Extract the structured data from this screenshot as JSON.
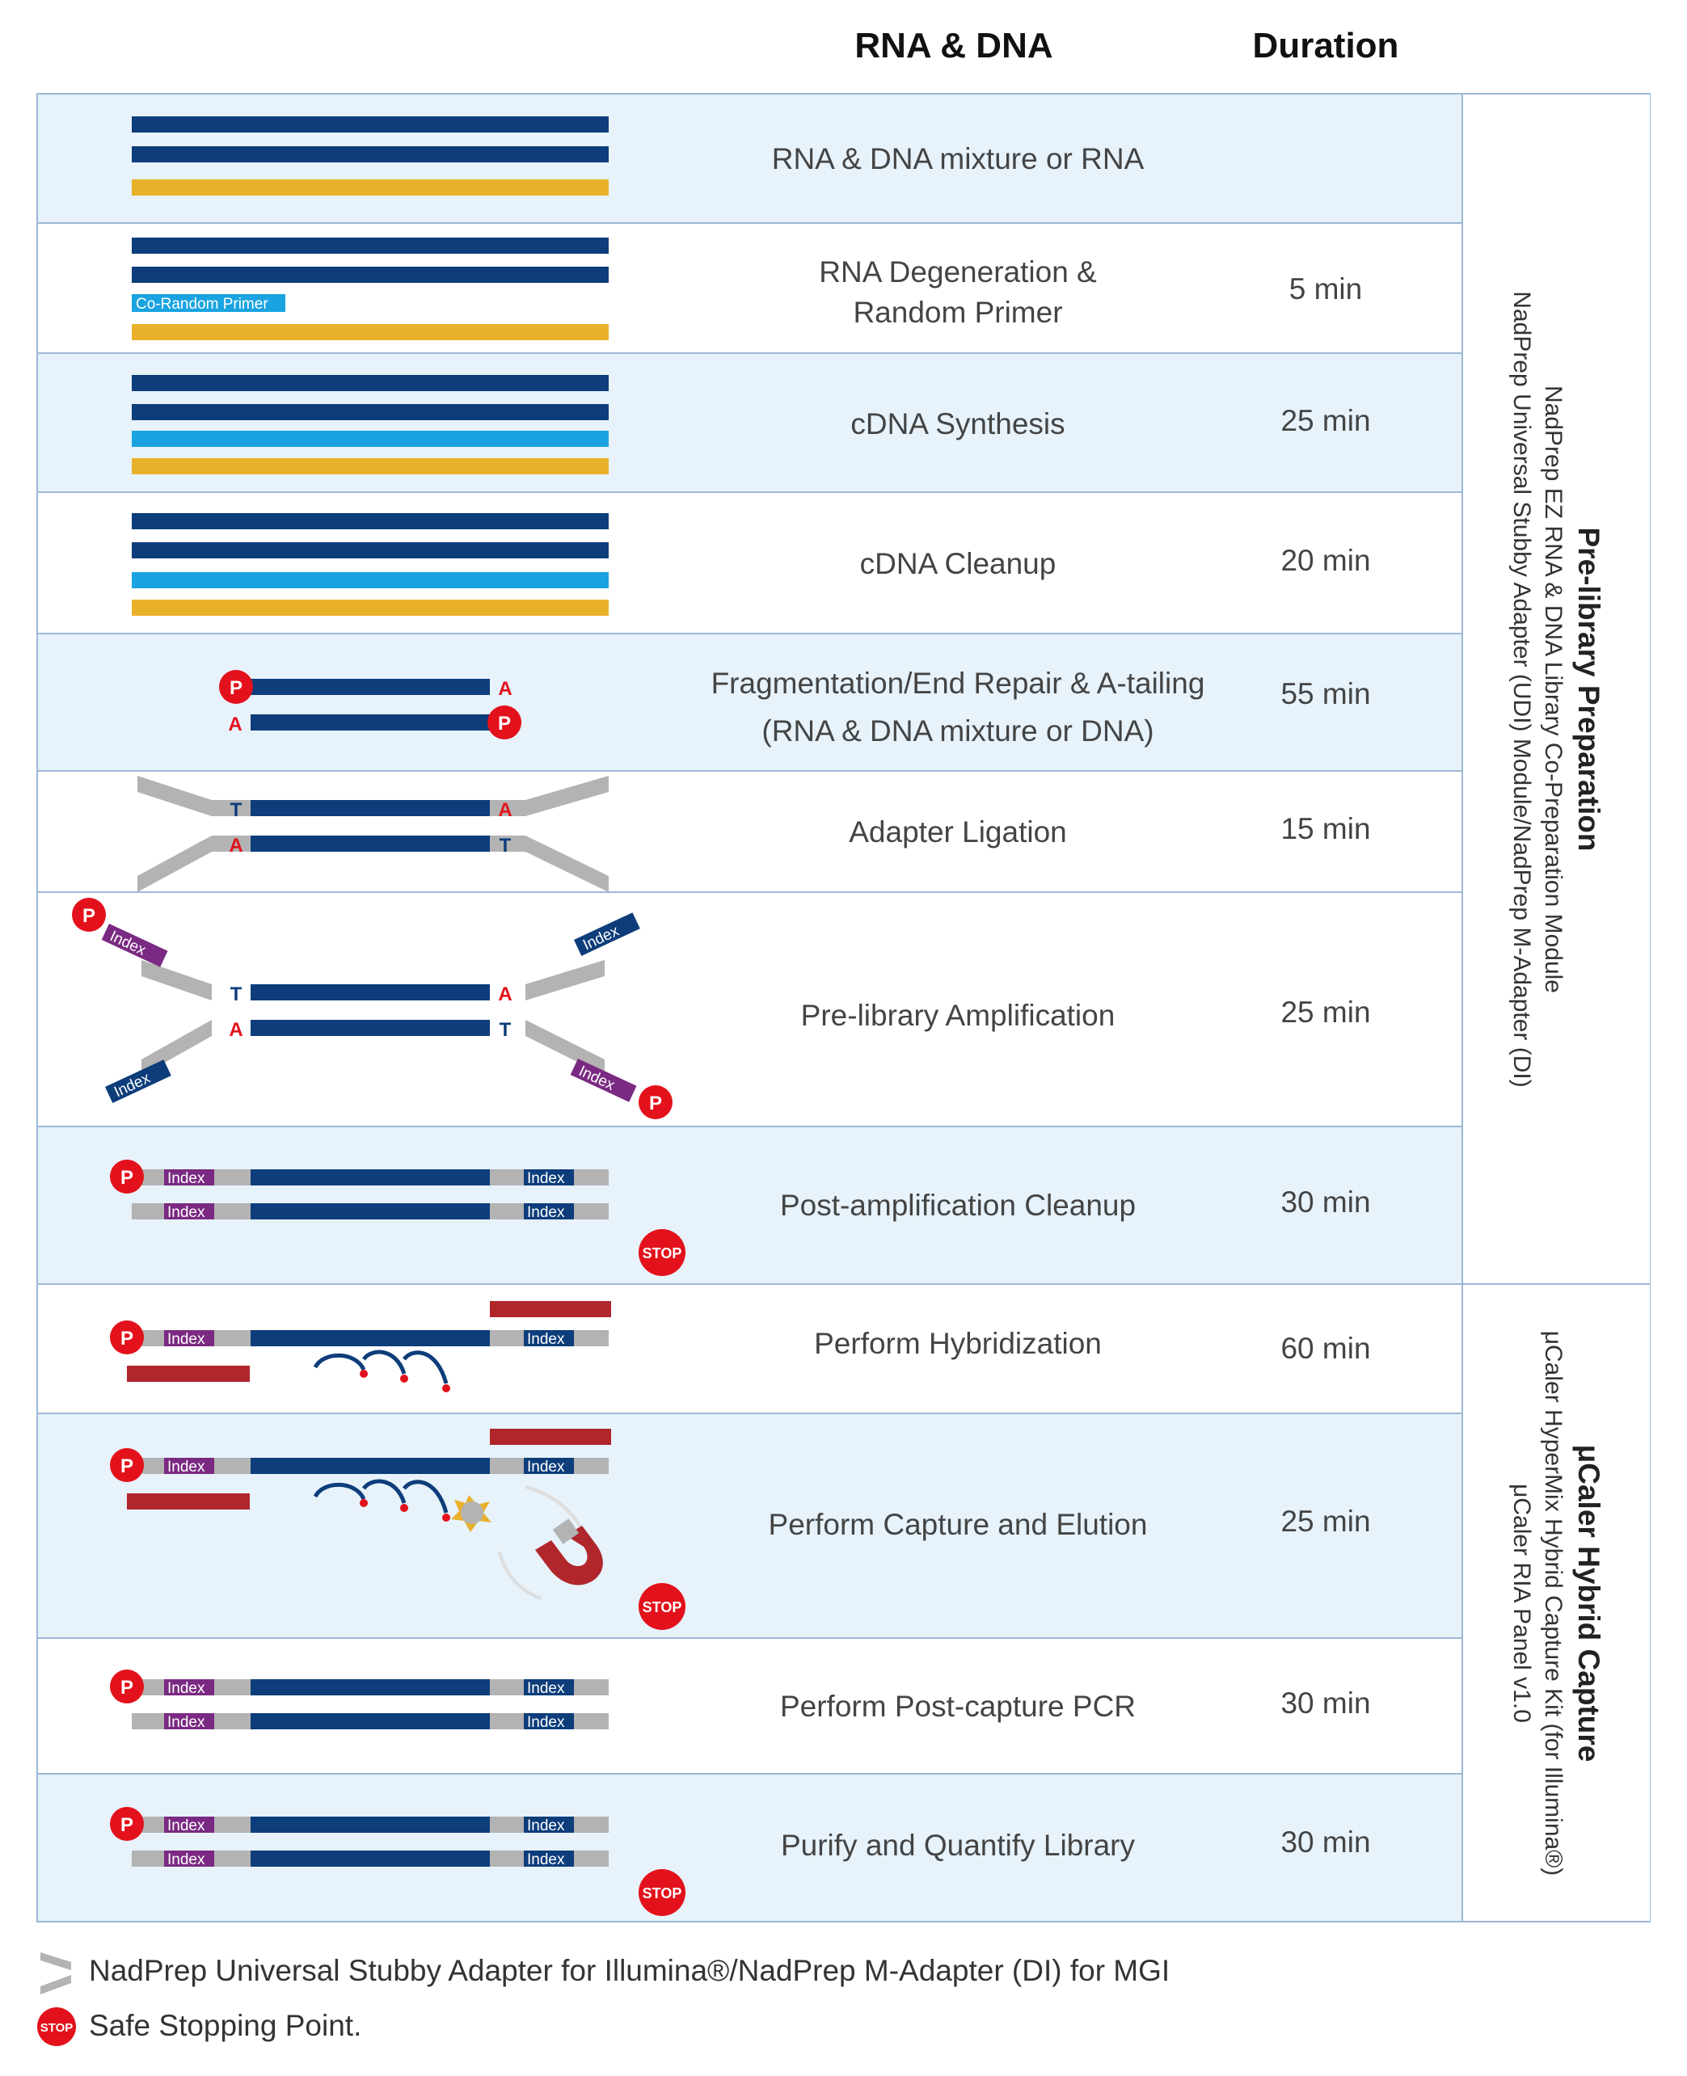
{
  "header": {
    "col_rna_dna": "RNA & DNA",
    "col_duration": "Duration"
  },
  "rows": [
    {
      "step": "RNA & DNA mixture or RNA",
      "duration": ""
    },
    {
      "step": "RNA Degeneration &\nRandom Primer",
      "duration": "5 min"
    },
    {
      "step": "cDNA Synthesis",
      "duration": "25 min"
    },
    {
      "step": "cDNA Cleanup",
      "duration": "20 min"
    },
    {
      "step": "Fragmentation/End Repair & A-tailing\n(RNA & DNA mixture or DNA)",
      "duration": "55 min"
    },
    {
      "step": "Adapter Ligation",
      "duration": "15 min"
    },
    {
      "step": "Pre-library Amplification",
      "duration": "25 min"
    },
    {
      "step": "Post-amplification Cleanup",
      "duration": "30 min"
    },
    {
      "step": "Perform Hybridization",
      "duration": "60 min"
    },
    {
      "step": "Perform Capture and Elution",
      "duration": "25 min"
    },
    {
      "step": "Perform Post-capture PCR",
      "duration": "30 min"
    },
    {
      "step": "Purify and Quantify Library",
      "duration": "30 min"
    }
  ],
  "groups": [
    {
      "title": "Pre-library Preparation",
      "line1": "NadPrep EZ RNA & DNA Library Co-Preparation Module",
      "line2": "NadPrep Universal Stubby Adapter (UDI) Module/NadPrep M-Adapter (DI)"
    },
    {
      "title": "μCaler Hybrid Capture",
      "line1": "μCaler HyperMix Hybrid Capture Kit (for Illumina®)",
      "line2": "μCaler RIA Panel v1.0"
    }
  ],
  "labels": {
    "co_random_primer": "Co-Random Primer",
    "index": "Index",
    "p": "P",
    "a": "A",
    "t": "T",
    "stop": "STOP"
  },
  "legend": {
    "adapter": "NadPrep Universal Stubby Adapter for Illumina®/NadPrep M-Adapter (DI) for MGI",
    "stop": "Safe Stopping Point."
  },
  "colors": {
    "navy": "#0d3d7a",
    "gold": "#e9b12a",
    "sky": "#1aa3e0",
    "red": "#e3111b",
    "purple": "#7a2a82",
    "gray": "#b3b3b3",
    "probe": "#b0262b",
    "border": "#9db8d6",
    "row_blue": "#e7f2fb"
  }
}
